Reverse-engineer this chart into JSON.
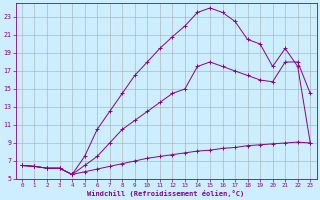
{
  "xlabel": "Windchill (Refroidissement éolien,°C)",
  "bg_color": "#cceeff",
  "grid_color": "#aaaaaa",
  "line_color": "#880088",
  "xlim": [
    -0.5,
    23.5
  ],
  "ylim": [
    5,
    24.5
  ],
  "xticks": [
    0,
    1,
    2,
    3,
    4,
    5,
    6,
    7,
    8,
    9,
    10,
    11,
    12,
    13,
    14,
    15,
    16,
    17,
    18,
    19,
    20,
    21,
    22,
    23
  ],
  "yticks": [
    5,
    7,
    9,
    11,
    13,
    15,
    17,
    19,
    21,
    23
  ],
  "curve1_x": [
    0,
    1,
    2,
    3,
    4,
    5,
    6,
    7,
    8,
    9,
    10,
    11,
    12,
    13,
    14,
    15,
    16,
    17,
    18,
    19,
    20,
    21,
    22,
    23
  ],
  "curve1_y": [
    6.5,
    6.4,
    6.2,
    6.2,
    5.5,
    5.8,
    6.1,
    6.4,
    6.7,
    7.0,
    7.3,
    7.5,
    7.7,
    7.9,
    8.1,
    8.2,
    8.4,
    8.5,
    8.7,
    8.8,
    8.9,
    9.0,
    9.1,
    9.0
  ],
  "curve2_x": [
    0,
    1,
    2,
    3,
    4,
    5,
    6,
    7,
    8,
    9,
    10,
    11,
    12,
    13,
    14,
    15,
    16,
    17,
    18,
    19,
    20,
    21,
    22,
    23
  ],
  "curve2_y": [
    6.5,
    6.4,
    6.2,
    6.2,
    5.5,
    6.5,
    7.5,
    9.0,
    10.5,
    11.5,
    12.5,
    13.5,
    14.5,
    15.0,
    17.5,
    18.0,
    17.5,
    17.0,
    16.5,
    16.0,
    15.8,
    18.0,
    18.0,
    14.5
  ],
  "curve3_x": [
    0,
    1,
    2,
    3,
    4,
    5,
    6,
    7,
    8,
    9,
    10,
    11,
    12,
    13,
    14,
    15,
    16,
    17,
    18,
    19,
    20,
    21,
    22,
    23
  ],
  "curve3_y": [
    6.5,
    6.4,
    6.2,
    6.2,
    5.5,
    7.5,
    10.5,
    12.5,
    14.5,
    16.5,
    18.0,
    19.5,
    20.8,
    22.0,
    23.5,
    24.0,
    23.5,
    22.5,
    20.5,
    20.0,
    17.5,
    19.5,
    17.5,
    9.0
  ]
}
